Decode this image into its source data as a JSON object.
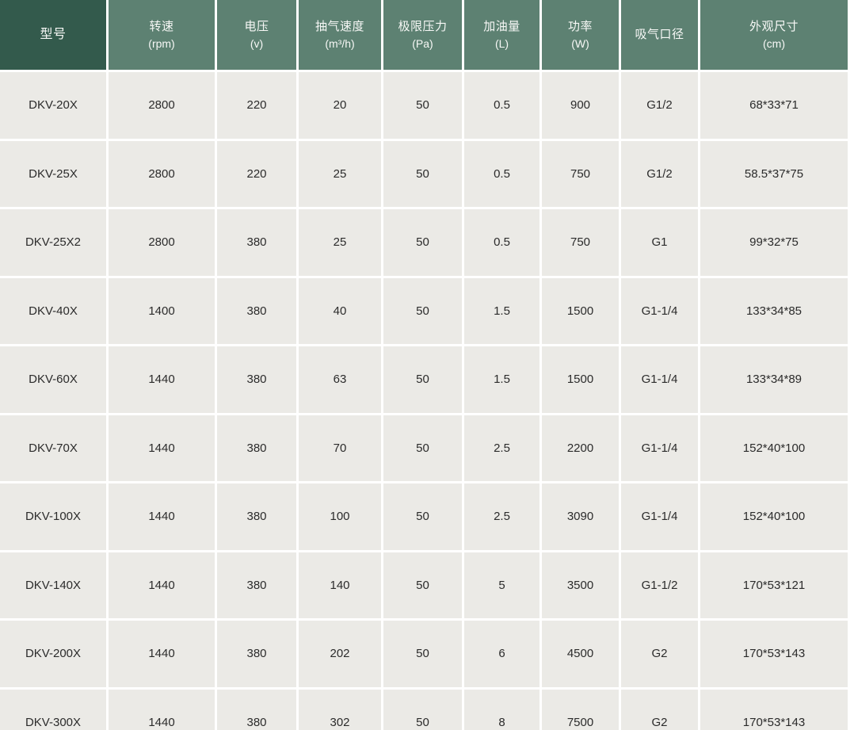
{
  "chart_data": {
    "type": "table",
    "title": "",
    "columns": [
      {
        "label": "型号",
        "unit": ""
      },
      {
        "label": "转速",
        "unit": "(rpm)"
      },
      {
        "label": "电压",
        "unit": "(v)"
      },
      {
        "label": "抽气速度",
        "unit": "(m³/h)"
      },
      {
        "label": "极限压力",
        "unit": "(Pa)"
      },
      {
        "label": "加油量",
        "unit": "(L)"
      },
      {
        "label": "功率",
        "unit": "(W)"
      },
      {
        "label": "吸气口径",
        "unit": ""
      },
      {
        "label": "外观尺寸",
        "unit": "(cm)"
      }
    ],
    "rows": [
      [
        "DKV-20X",
        "2800",
        "220",
        "20",
        "50",
        "0.5",
        "900",
        "G1/2",
        "68*33*71"
      ],
      [
        "DKV-25X",
        "2800",
        "220",
        "25",
        "50",
        "0.5",
        "750",
        "G1/2",
        "58.5*37*75"
      ],
      [
        "DKV-25X2",
        "2800",
        "380",
        "25",
        "50",
        "0.5",
        "750",
        "G1",
        "99*32*75"
      ],
      [
        "DKV-40X",
        "1400",
        "380",
        "40",
        "50",
        "1.5",
        "1500",
        "G1-1/4",
        "133*34*85"
      ],
      [
        "DKV-60X",
        "1440",
        "380",
        "63",
        "50",
        "1.5",
        "1500",
        "G1-1/4",
        "133*34*89"
      ],
      [
        "DKV-70X",
        "1440",
        "380",
        "70",
        "50",
        "2.5",
        "2200",
        "G1-1/4",
        "152*40*100"
      ],
      [
        "DKV-100X",
        "1440",
        "380",
        "100",
        "50",
        "2.5",
        "3090",
        "G1-1/4",
        "152*40*100"
      ],
      [
        "DKV-140X",
        "1440",
        "380",
        "140",
        "50",
        "5",
        "3500",
        "G1-1/2",
        "170*53*121"
      ],
      [
        "DKV-200X",
        "1440",
        "380",
        "202",
        "50",
        "6",
        "4500",
        "G2",
        "170*53*143"
      ],
      [
        "DKV-300X",
        "1440",
        "380",
        "302",
        "50",
        "8",
        "7500",
        "G2",
        "170*53*143"
      ]
    ]
  },
  "colors": {
    "header_primary": "#335a4c",
    "header_secondary": "#5d8172",
    "cell_bg": "#ebeae6",
    "divider": "#ffffff",
    "text": "#2b2b2b",
    "header_text": "#f7f8f6"
  }
}
